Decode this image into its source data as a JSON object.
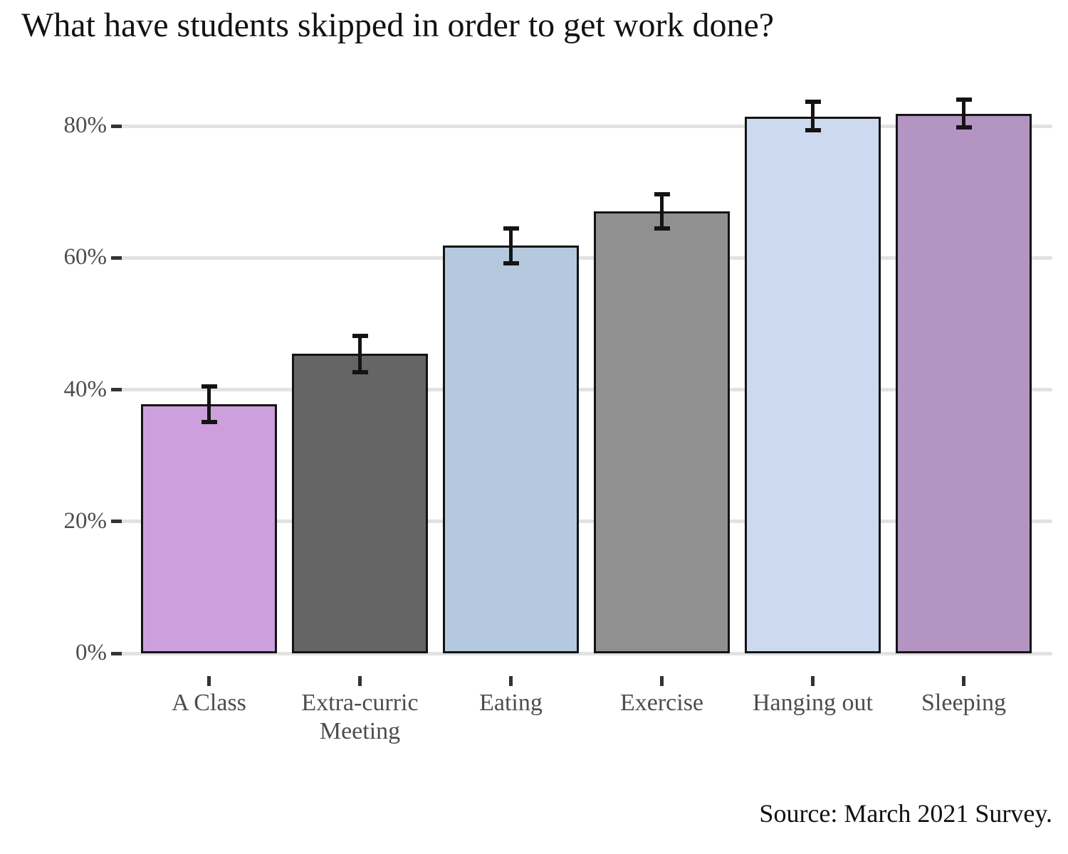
{
  "chart_data": {
    "type": "bar",
    "title": "What have students skipped in order to get work done?",
    "categories": [
      "A Class",
      "Extra-curric Meeting",
      "Eating",
      "Exercise",
      "Hanging out",
      "Sleeping"
    ],
    "values": [
      37.8,
      45.4,
      61.9,
      67.0,
      81.4,
      81.8
    ],
    "error_low": [
      35.1,
      42.6,
      59.2,
      64.4,
      79.4,
      79.8
    ],
    "error_high": [
      40.5,
      48.1,
      64.5,
      69.6,
      83.7,
      84.0
    ],
    "bar_colors": [
      "#cda0dd",
      "#656565",
      "#b4c9de",
      "#909090",
      "#ccd9ef",
      "#b394c2"
    ],
    "xlabel": "",
    "ylabel": "",
    "y_ticks": [
      0,
      20,
      40,
      60,
      80
    ],
    "y_tick_labels": [
      "0%",
      "20%",
      "40%",
      "60%",
      "80%"
    ],
    "ylim": [
      0,
      85
    ],
    "grid": "horizontal-only",
    "legend": "none",
    "error_bars": true,
    "annotations": [
      "Source: March 2021 Survey."
    ]
  },
  "colors": {
    "background": "#ffffff",
    "grid": "#e2e2e2",
    "tick": "#333333",
    "axis_text": "#4d4d4d",
    "bar_border": "#141414",
    "error_bar": "#141414",
    "title_text": "#121212",
    "source_text": "#111111"
  }
}
